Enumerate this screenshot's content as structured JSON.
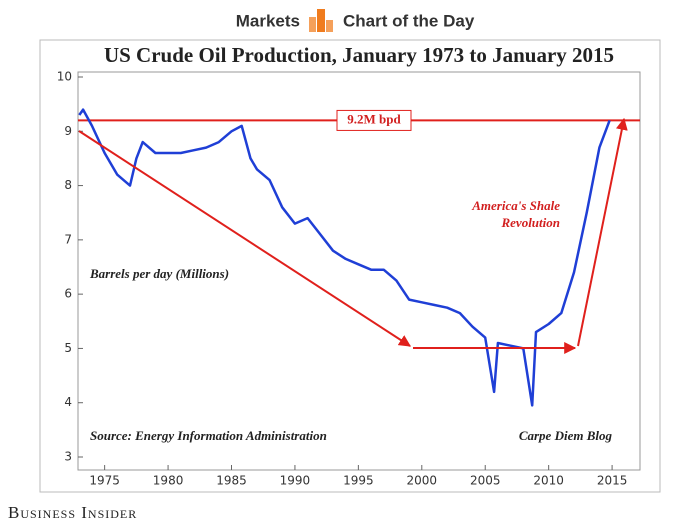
{
  "chart_data": {
    "type": "line",
    "section": "Markets",
    "subtitle": "Chart of the Day",
    "title": "US Crude Oil Production, January 1973 to January 2015",
    "ylabel": "Barrels per day (Millions)",
    "annotations": [
      "America's Shale",
      "Revolution"
    ],
    "source": "Source: Energy Information Administration",
    "credit": "Carpe Diem Blog",
    "footer": "Business Insider",
    "reference_line": {
      "value": 9.2,
      "label": "9.2M bpd",
      "color": "#e0201c"
    },
    "color": "#1f3fd6",
    "x": [
      1973.0,
      1973.3,
      1974,
      1975,
      1976,
      1977,
      1977.5,
      1978,
      1979,
      1980,
      1981,
      1982,
      1983,
      1984,
      1985,
      1985.8,
      1986.5,
      1987,
      1988,
      1989,
      1990,
      1991,
      1992,
      1993,
      1994,
      1995,
      1996,
      1997,
      1998,
      1999,
      2000,
      2001,
      2002,
      2003,
      2004,
      2005,
      2005.7,
      2006,
      2007,
      2008,
      2008.7,
      2009,
      2010,
      2011,
      2012,
      2013,
      2014,
      2014.8
    ],
    "values": [
      9.3,
      9.4,
      9.1,
      8.6,
      8.2,
      8.0,
      8.5,
      8.8,
      8.6,
      8.6,
      8.6,
      8.65,
      8.7,
      8.8,
      9.0,
      9.1,
      8.5,
      8.3,
      8.1,
      7.6,
      7.3,
      7.4,
      7.1,
      6.8,
      6.65,
      6.55,
      6.45,
      6.45,
      6.25,
      5.9,
      5.85,
      5.8,
      5.75,
      5.65,
      5.4,
      5.2,
      4.2,
      5.1,
      5.05,
      5.0,
      3.95,
      5.3,
      5.45,
      5.65,
      6.4,
      7.5,
      8.7,
      9.2
    ],
    "xlim": [
      1972.9,
      2017.2
    ],
    "ylim": [
      3,
      10
    ],
    "xticks": [
      1975,
      1980,
      1985,
      1990,
      1995,
      2000,
      2005,
      2010,
      2015
    ],
    "yticks": [
      3,
      4,
      5,
      6,
      7,
      8,
      9,
      10
    ]
  }
}
